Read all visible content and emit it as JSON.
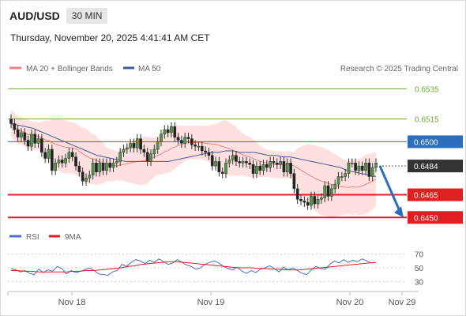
{
  "header": {
    "symbol": "AUD/USD",
    "timeframe": "30 MIN",
    "datetime": "Thursday, November 20, 2025 4:41:41 AM CET"
  },
  "colors": {
    "bollinger_line": "#f08080",
    "bollinger_band": "#ffd6d6",
    "ma50": "#3d5a99",
    "resistance": "#6aaa3a",
    "pivot": "#2a6ebd",
    "support": "#e02020",
    "current": "#333333",
    "rsi": "#4a6fd0",
    "rsi_ma": "#e02020"
  },
  "chart_data": [
    {
      "type": "candlestick",
      "legend": [
        {
          "name": "MA 20 + Bollinger Bands",
          "color": "#f08080"
        },
        {
          "name": "MA 50",
          "color": "#3d5a99"
        }
      ],
      "legend_position": "top-left",
      "credit": "Research © 2025 Trading Central",
      "ylim": [
        0.64465,
        0.6543
      ],
      "x_ticks": [
        "Nov 18",
        "Nov 19",
        "Nov 20",
        "Nov 29"
      ],
      "levels": [
        {
          "value": "0.6535",
          "kind": "resistance"
        },
        {
          "value": "0.6515",
          "kind": "resistance"
        },
        {
          "value": "0.6500",
          "kind": "pivot"
        },
        {
          "value": "0.6484",
          "kind": "current"
        },
        {
          "value": "0.6465",
          "kind": "support"
        },
        {
          "value": "0.6450",
          "kind": "support"
        }
      ],
      "forecast_arrow": {
        "from": 0.6484,
        "to": 0.645
      },
      "close_series": [
        0.6512,
        0.6508,
        0.6503,
        0.6506,
        0.6501,
        0.6497,
        0.6505,
        0.6499,
        0.6502,
        0.6493,
        0.6489,
        0.6495,
        0.6481,
        0.6486,
        0.6488,
        0.6486,
        0.6489,
        0.6493,
        0.649,
        0.6484,
        0.648,
        0.6474,
        0.6476,
        0.6478,
        0.6486,
        0.648,
        0.6486,
        0.6481,
        0.6486,
        0.6483,
        0.6486,
        0.6487,
        0.6493,
        0.6495,
        0.6496,
        0.6499,
        0.6496,
        0.6502,
        0.6495,
        0.6493,
        0.6487,
        0.6492,
        0.6495,
        0.65,
        0.6505,
        0.6508,
        0.6506,
        0.651,
        0.6503,
        0.6501,
        0.6499,
        0.6503,
        0.6502,
        0.6498,
        0.6497,
        0.6497,
        0.6494,
        0.6493,
        0.6491,
        0.6484,
        0.6487,
        0.648,
        0.6479,
        0.6486,
        0.6488,
        0.6491,
        0.6487,
        0.6486,
        0.6487,
        0.6486,
        0.6485,
        0.6479,
        0.6484,
        0.6481,
        0.6485,
        0.6483,
        0.6487,
        0.6486,
        0.6485,
        0.6487,
        0.648,
        0.6486,
        0.6479,
        0.6469,
        0.6462,
        0.6461,
        0.646,
        0.6458,
        0.6464,
        0.6459,
        0.6462,
        0.6463,
        0.6471,
        0.6464,
        0.6469,
        0.6472,
        0.6477,
        0.6477,
        0.6479,
        0.6486,
        0.6486,
        0.6481,
        0.6484,
        0.6481,
        0.6486,
        0.6477,
        0.6483,
        0.6486
      ],
      "ma50_series": [
        0.6512,
        0.6511,
        0.651,
        0.6509,
        0.6507,
        0.6505,
        0.6503,
        0.6501,
        0.6499,
        0.6497,
        0.6495,
        0.6493,
        0.6491,
        0.649,
        0.6489,
        0.6488,
        0.6487,
        0.6487,
        0.6487,
        0.6487,
        0.6487,
        0.6487,
        0.6487,
        0.6488,
        0.6489,
        0.649,
        0.6491,
        0.6492,
        0.6493,
        0.6493,
        0.6494,
        0.6494,
        0.6493,
        0.6493,
        0.6493,
        0.6492,
        0.6491,
        0.6491,
        0.649,
        0.649,
        0.6489,
        0.6488,
        0.6487,
        0.6486,
        0.6485,
        0.6484,
        0.6483,
        0.6481,
        0.648,
        0.6479,
        0.6478,
        0.6477
      ],
      "rsi": {
        "legend": [
          {
            "name": "RSI",
            "color": "#4a6fd0"
          },
          {
            "name": "9MA",
            "color": "#e02020"
          }
        ],
        "ylim": [
          20,
          80
        ],
        "y_ticks": [
          "70",
          "50",
          "30"
        ],
        "rsi_series": [
          49,
          47,
          44,
          46,
          42,
          40,
          48,
          43,
          47,
          45,
          52,
          49,
          41,
          46,
          43,
          45,
          47,
          50,
          46,
          41,
          40,
          39,
          44,
          46,
          55,
          52,
          58,
          62,
          60,
          56,
          61,
          58,
          63,
          59,
          55,
          57,
          62,
          58,
          54,
          52,
          48,
          50,
          55,
          58,
          60,
          57,
          52,
          49,
          47,
          51,
          45,
          42,
          46,
          43,
          48,
          50,
          53,
          49,
          44,
          51,
          47,
          50,
          46,
          42,
          40,
          47,
          52,
          49,
          48,
          55,
          60,
          57,
          62,
          58,
          61,
          59,
          63,
          60,
          57,
          58
        ],
        "ma_series": [
          46,
          46,
          45,
          45,
          44,
          44,
          44,
          44,
          44,
          45,
          45,
          46,
          46,
          47,
          48,
          49,
          50,
          52,
          53,
          55,
          56,
          57,
          58,
          59,
          59,
          58,
          57,
          56,
          55,
          54,
          53,
          52,
          51,
          50,
          50,
          50,
          49,
          49,
          48,
          48,
          47,
          47,
          47,
          48,
          49,
          50,
          51,
          52,
          53,
          54,
          55,
          56,
          57,
          58
        ]
      }
    }
  ]
}
